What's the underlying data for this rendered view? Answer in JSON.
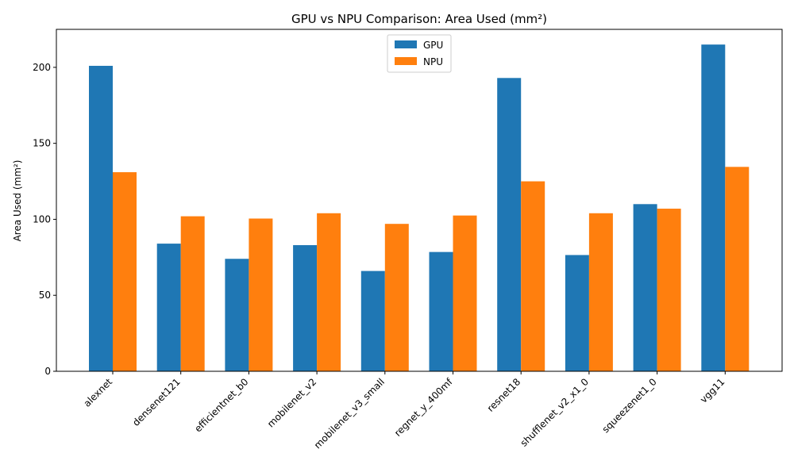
{
  "chart_data": {
    "type": "bar",
    "title": "GPU vs NPU Comparison: Area Used (mm²)",
    "xlabel": "",
    "ylabel": "Area Used (mm²)",
    "ylim": [
      0,
      225
    ],
    "yticks": [
      0,
      50,
      100,
      150,
      200
    ],
    "grid": false,
    "legend_position": "top-center",
    "categories": [
      "alexnet",
      "densenet121",
      "efficientnet_b0",
      "mobilenet_v2",
      "mobilenet_v3_small",
      "regnet_y_400mf",
      "resnet18",
      "shufflenet_v2_x1_0",
      "squeezenet1_0",
      "vgg11"
    ],
    "series": [
      {
        "name": "GPU",
        "color": "#1f77b4",
        "values": [
          201,
          84,
          74,
          83,
          66,
          78.5,
          193,
          76.5,
          110,
          215
        ]
      },
      {
        "name": "NPU",
        "color": "#ff7f0e",
        "values": [
          131,
          102,
          100.5,
          104,
          97,
          102.5,
          125,
          104,
          107,
          134.5
        ]
      }
    ]
  }
}
